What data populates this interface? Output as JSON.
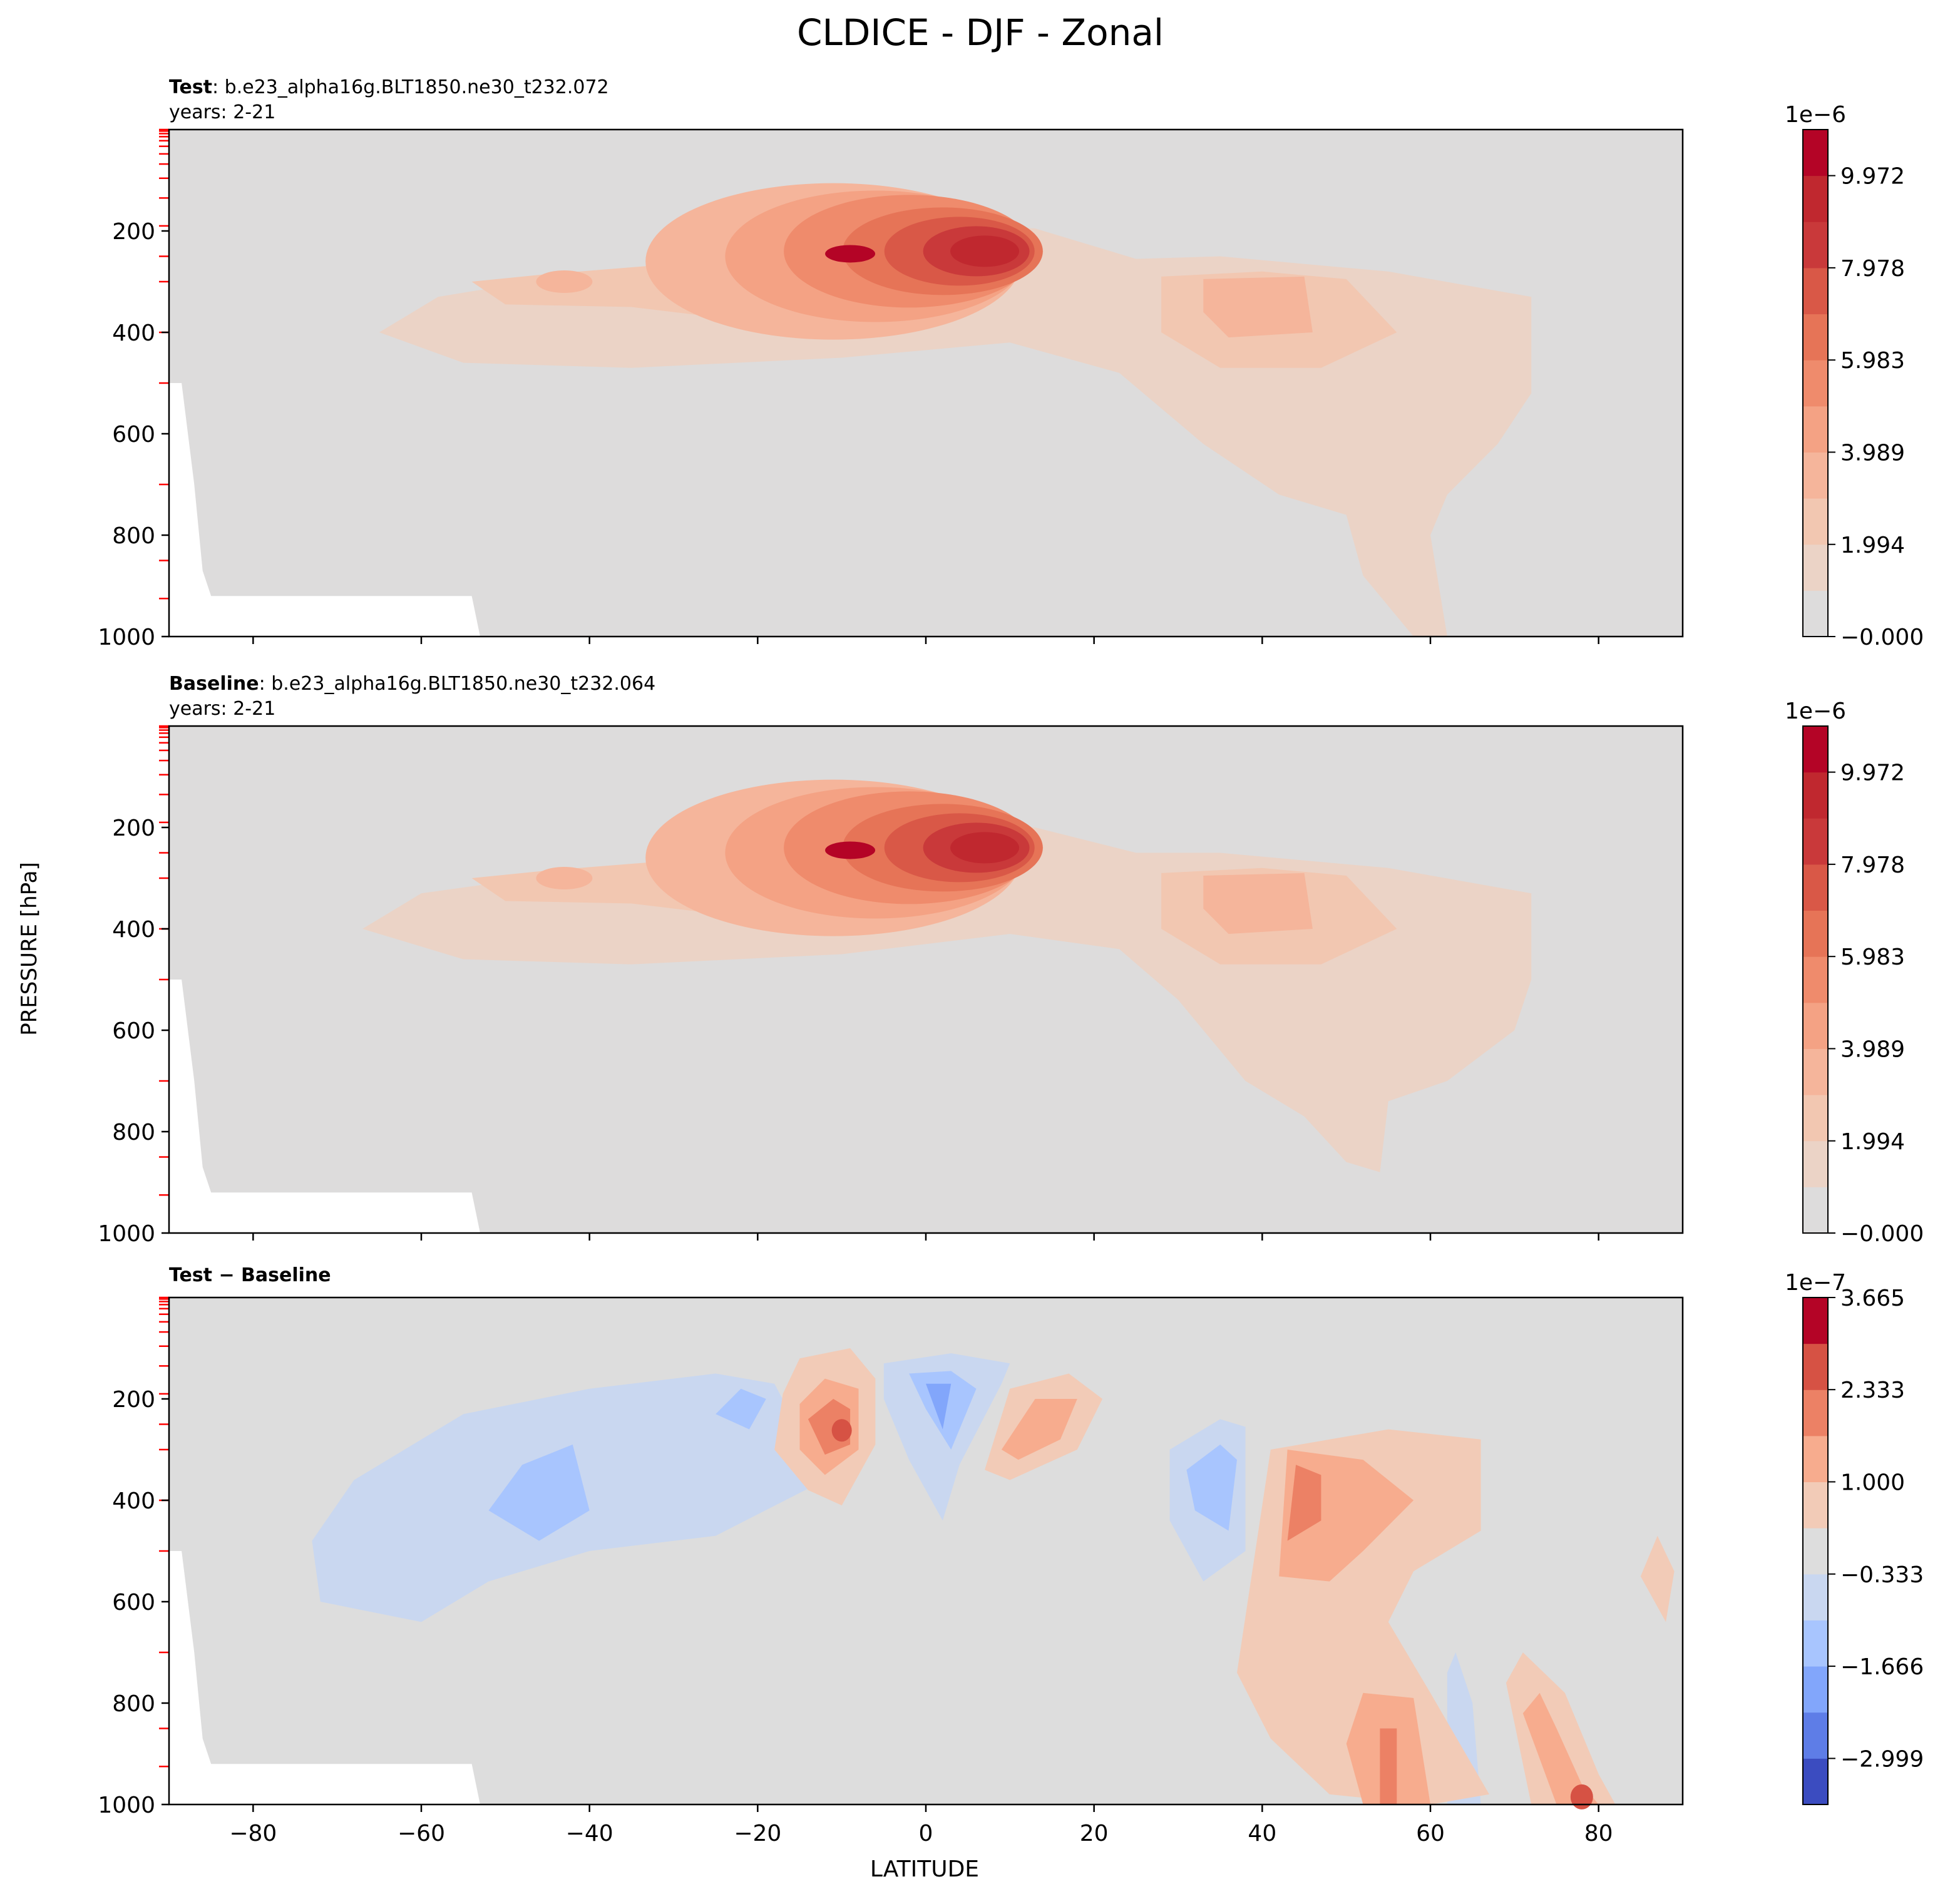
{
  "figure": {
    "title": "CLDICE - DJF - Zonal",
    "ylabel": "PRESSURE [hPa]",
    "xlabel": "LATITUDE"
  },
  "chart_data": [
    {
      "type": "heatmap",
      "panel": "test",
      "label_bold": "Test",
      "label_rest": ": b.e23_alpha16g.BLT1850.ne30_t232.072",
      "years": "years: 2-21",
      "xlim": [
        -90,
        90
      ],
      "ylim": [
        1000,
        0
      ],
      "y_ticks": [
        200,
        400,
        600,
        800,
        1000
      ],
      "x_ticks": [
        -80,
        -60,
        -40,
        -20,
        0,
        20,
        40,
        60,
        80
      ],
      "x_ticklabels_visible": false,
      "colorbar": {
        "exponent": "1e−6",
        "levels_min": 0,
        "levels_max": 1.0969e-05,
        "n_bins": 11,
        "ticks": [
          "−0.000",
          "1.994",
          "3.989",
          "5.983",
          "7.978",
          "9.972"
        ],
        "colors": [
          "#dddcdc",
          "#ebd3c6",
          "#f2c7b1",
          "#f5b59b",
          "#f4a284",
          "#ef8b6c",
          "#e67457",
          "#d95847",
          "#c9393a",
          "#c0282f",
          "#b40426"
        ]
      },
      "features": [
        {
          "name": "tropical upper-tropospheric maximum",
          "lat": -9,
          "pressure": 240,
          "value": 1.08e-05
        },
        {
          "name": "southern midlatitude lobe",
          "lat": -45,
          "pressure": 300,
          "value": 2.5e-06
        },
        {
          "name": "northern midlatitude maximum",
          "lat": 38,
          "pressure": 340,
          "value": 3.2e-06
        }
      ]
    },
    {
      "type": "heatmap",
      "panel": "baseline",
      "label_bold": "Baseline",
      "label_rest": ": b.e23_alpha16g.BLT1850.ne30_t232.064",
      "years": "years: 2-21",
      "xlim": [
        -90,
        90
      ],
      "ylim": [
        1000,
        0
      ],
      "y_ticks": [
        200,
        400,
        600,
        800,
        1000
      ],
      "x_ticks": [
        -80,
        -60,
        -40,
        -20,
        0,
        20,
        40,
        60,
        80
      ],
      "x_ticklabels_visible": false,
      "colorbar": {
        "exponent": "1e−6",
        "levels_min": 0,
        "levels_max": 1.0969e-05,
        "n_bins": 11,
        "ticks": [
          "−0.000",
          "1.994",
          "3.989",
          "5.983",
          "7.978",
          "9.972"
        ],
        "colors": [
          "#dddcdc",
          "#ebd3c6",
          "#f2c7b1",
          "#f5b59b",
          "#f4a284",
          "#ef8b6c",
          "#e67457",
          "#d95847",
          "#c9393a",
          "#c0282f",
          "#b40426"
        ]
      },
      "features": [
        {
          "name": "tropical upper-tropospheric maximum",
          "lat": -9,
          "pressure": 240,
          "value": 1.05e-05
        },
        {
          "name": "southern midlatitude lobe",
          "lat": -46,
          "pressure": 300,
          "value": 2.4e-06
        },
        {
          "name": "northern midlatitude maximum",
          "lat": 36,
          "pressure": 340,
          "value": 3.1e-06
        }
      ]
    },
    {
      "type": "heatmap",
      "panel": "difference",
      "label_bold": "Test − Baseline",
      "label_rest": "",
      "years": "",
      "xlim": [
        -90,
        90
      ],
      "ylim": [
        1000,
        0
      ],
      "y_ticks": [
        200,
        400,
        600,
        800,
        1000
      ],
      "x_ticks": [
        -80,
        -60,
        -40,
        -20,
        0,
        20,
        40,
        60,
        80
      ],
      "x_ticklabels": [
        "−80",
        "−60",
        "−40",
        "−20",
        "0",
        "20",
        "40",
        "60",
        "80"
      ],
      "x_ticklabels_visible": true,
      "colorbar": {
        "exponent": "1e−7",
        "levels_min": -3.665e-07,
        "levels_max": 3.665e-07,
        "n_bins": 11,
        "ticks": [
          "−2.999",
          "−1.666",
          "−0.333",
          "1.000",
          "2.333",
          "3.665"
        ],
        "tick_values": [
          -2.999e-07,
          -1.666e-07,
          -3.33e-08,
          1e-07,
          2.333e-07,
          3.665e-07
        ],
        "colors": [
          "#3b4cc0",
          "#5e7de7",
          "#82a6fb",
          "#a8c5fe",
          "#c9d7f0",
          "#dddddd",
          "#f2cbb7",
          "#f7ac8e",
          "#ec8165",
          "#d65244",
          "#b40426"
        ]
      },
      "features": [
        {
          "name": "positive anomaly near tropics",
          "lat": -11,
          "pressure": 260,
          "value": 3.4e-07
        },
        {
          "name": "negative anomaly near equator",
          "lat": 2,
          "pressure": 180,
          "value": -2e-07
        },
        {
          "name": "negative anomaly southern midlatitudes",
          "lat": -47,
          "pressure": 410,
          "value": -1.2e-07
        },
        {
          "name": "positive anomaly northern midlatitudes",
          "lat": 45,
          "pressure": 370,
          "value": 2e-07
        },
        {
          "name": "positive anomaly near 60N surface",
          "lat": 55,
          "pressure": 900,
          "value": 2e-07
        },
        {
          "name": "positive anomaly near 78N surface",
          "lat": 78,
          "pressure": 980,
          "value": 3e-07
        }
      ]
    }
  ]
}
